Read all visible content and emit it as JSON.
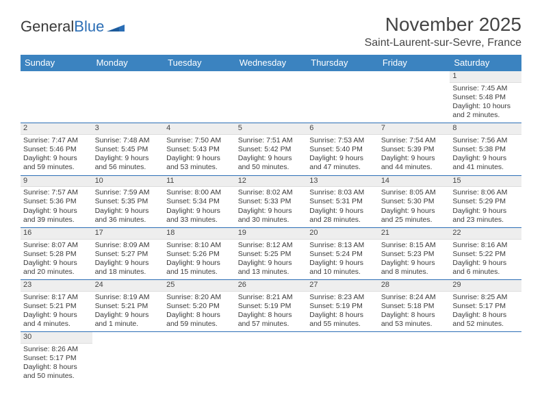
{
  "logo": {
    "text1": "General",
    "text2": "Blue"
  },
  "title": "November 2025",
  "location": "Saint-Laurent-sur-Sevre, France",
  "colors": {
    "header_bg": "#3b83c0",
    "rule": "#2a6db5",
    "daynum_bg": "#eeeeee"
  },
  "weekdays": [
    "Sunday",
    "Monday",
    "Tuesday",
    "Wednesday",
    "Thursday",
    "Friday",
    "Saturday"
  ],
  "weeks": [
    [
      {
        "empty": true
      },
      {
        "empty": true
      },
      {
        "empty": true
      },
      {
        "empty": true
      },
      {
        "empty": true
      },
      {
        "empty": true
      },
      {
        "n": "1",
        "sunrise": "Sunrise: 7:45 AM",
        "sunset": "Sunset: 5:48 PM",
        "daylight": "Daylight: 10 hours and 2 minutes."
      }
    ],
    [
      {
        "n": "2",
        "sunrise": "Sunrise: 7:47 AM",
        "sunset": "Sunset: 5:46 PM",
        "daylight": "Daylight: 9 hours and 59 minutes."
      },
      {
        "n": "3",
        "sunrise": "Sunrise: 7:48 AM",
        "sunset": "Sunset: 5:45 PM",
        "daylight": "Daylight: 9 hours and 56 minutes."
      },
      {
        "n": "4",
        "sunrise": "Sunrise: 7:50 AM",
        "sunset": "Sunset: 5:43 PM",
        "daylight": "Daylight: 9 hours and 53 minutes."
      },
      {
        "n": "5",
        "sunrise": "Sunrise: 7:51 AM",
        "sunset": "Sunset: 5:42 PM",
        "daylight": "Daylight: 9 hours and 50 minutes."
      },
      {
        "n": "6",
        "sunrise": "Sunrise: 7:53 AM",
        "sunset": "Sunset: 5:40 PM",
        "daylight": "Daylight: 9 hours and 47 minutes."
      },
      {
        "n": "7",
        "sunrise": "Sunrise: 7:54 AM",
        "sunset": "Sunset: 5:39 PM",
        "daylight": "Daylight: 9 hours and 44 minutes."
      },
      {
        "n": "8",
        "sunrise": "Sunrise: 7:56 AM",
        "sunset": "Sunset: 5:38 PM",
        "daylight": "Daylight: 9 hours and 41 minutes."
      }
    ],
    [
      {
        "n": "9",
        "sunrise": "Sunrise: 7:57 AM",
        "sunset": "Sunset: 5:36 PM",
        "daylight": "Daylight: 9 hours and 39 minutes."
      },
      {
        "n": "10",
        "sunrise": "Sunrise: 7:59 AM",
        "sunset": "Sunset: 5:35 PM",
        "daylight": "Daylight: 9 hours and 36 minutes."
      },
      {
        "n": "11",
        "sunrise": "Sunrise: 8:00 AM",
        "sunset": "Sunset: 5:34 PM",
        "daylight": "Daylight: 9 hours and 33 minutes."
      },
      {
        "n": "12",
        "sunrise": "Sunrise: 8:02 AM",
        "sunset": "Sunset: 5:33 PM",
        "daylight": "Daylight: 9 hours and 30 minutes."
      },
      {
        "n": "13",
        "sunrise": "Sunrise: 8:03 AM",
        "sunset": "Sunset: 5:31 PM",
        "daylight": "Daylight: 9 hours and 28 minutes."
      },
      {
        "n": "14",
        "sunrise": "Sunrise: 8:05 AM",
        "sunset": "Sunset: 5:30 PM",
        "daylight": "Daylight: 9 hours and 25 minutes."
      },
      {
        "n": "15",
        "sunrise": "Sunrise: 8:06 AM",
        "sunset": "Sunset: 5:29 PM",
        "daylight": "Daylight: 9 hours and 23 minutes."
      }
    ],
    [
      {
        "n": "16",
        "sunrise": "Sunrise: 8:07 AM",
        "sunset": "Sunset: 5:28 PM",
        "daylight": "Daylight: 9 hours and 20 minutes."
      },
      {
        "n": "17",
        "sunrise": "Sunrise: 8:09 AM",
        "sunset": "Sunset: 5:27 PM",
        "daylight": "Daylight: 9 hours and 18 minutes."
      },
      {
        "n": "18",
        "sunrise": "Sunrise: 8:10 AM",
        "sunset": "Sunset: 5:26 PM",
        "daylight": "Daylight: 9 hours and 15 minutes."
      },
      {
        "n": "19",
        "sunrise": "Sunrise: 8:12 AM",
        "sunset": "Sunset: 5:25 PM",
        "daylight": "Daylight: 9 hours and 13 minutes."
      },
      {
        "n": "20",
        "sunrise": "Sunrise: 8:13 AM",
        "sunset": "Sunset: 5:24 PM",
        "daylight": "Daylight: 9 hours and 10 minutes."
      },
      {
        "n": "21",
        "sunrise": "Sunrise: 8:15 AM",
        "sunset": "Sunset: 5:23 PM",
        "daylight": "Daylight: 9 hours and 8 minutes."
      },
      {
        "n": "22",
        "sunrise": "Sunrise: 8:16 AM",
        "sunset": "Sunset: 5:22 PM",
        "daylight": "Daylight: 9 hours and 6 minutes."
      }
    ],
    [
      {
        "n": "23",
        "sunrise": "Sunrise: 8:17 AM",
        "sunset": "Sunset: 5:21 PM",
        "daylight": "Daylight: 9 hours and 4 minutes."
      },
      {
        "n": "24",
        "sunrise": "Sunrise: 8:19 AM",
        "sunset": "Sunset: 5:21 PM",
        "daylight": "Daylight: 9 hours and 1 minute."
      },
      {
        "n": "25",
        "sunrise": "Sunrise: 8:20 AM",
        "sunset": "Sunset: 5:20 PM",
        "daylight": "Daylight: 8 hours and 59 minutes."
      },
      {
        "n": "26",
        "sunrise": "Sunrise: 8:21 AM",
        "sunset": "Sunset: 5:19 PM",
        "daylight": "Daylight: 8 hours and 57 minutes."
      },
      {
        "n": "27",
        "sunrise": "Sunrise: 8:23 AM",
        "sunset": "Sunset: 5:19 PM",
        "daylight": "Daylight: 8 hours and 55 minutes."
      },
      {
        "n": "28",
        "sunrise": "Sunrise: 8:24 AM",
        "sunset": "Sunset: 5:18 PM",
        "daylight": "Daylight: 8 hours and 53 minutes."
      },
      {
        "n": "29",
        "sunrise": "Sunrise: 8:25 AM",
        "sunset": "Sunset: 5:17 PM",
        "daylight": "Daylight: 8 hours and 52 minutes."
      }
    ],
    [
      {
        "n": "30",
        "sunrise": "Sunrise: 8:26 AM",
        "sunset": "Sunset: 5:17 PM",
        "daylight": "Daylight: 8 hours and 50 minutes."
      },
      {
        "empty": true
      },
      {
        "empty": true
      },
      {
        "empty": true
      },
      {
        "empty": true
      },
      {
        "empty": true
      },
      {
        "empty": true
      }
    ]
  ]
}
